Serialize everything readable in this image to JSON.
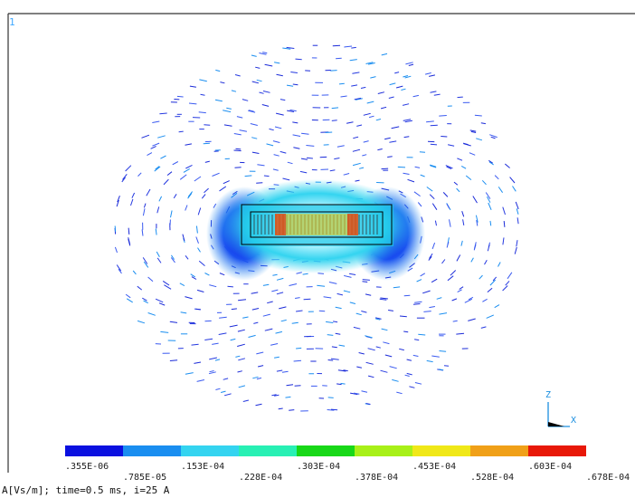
{
  "window_number": "1",
  "axes": {
    "z_label": "Z",
    "x_label": "X"
  },
  "legend": {
    "colors": [
      "#0a10e0",
      "#1a8ef0",
      "#34d4f0",
      "#28f0b4",
      "#18d818",
      "#a8f018",
      "#f0e818",
      "#f0a018",
      "#e81808"
    ],
    "tick_labels_upper": [
      ".355E-06",
      ".153E-04",
      ".303E-04",
      ".453E-04",
      ".603E-04"
    ],
    "tick_labels_lower": [
      ".785E-05",
      ".228E-04",
      ".378E-04",
      ".528E-04",
      ".678E-04"
    ]
  },
  "caption": "A[Vs/m]; time=0.5 ms, i=25 A"
}
